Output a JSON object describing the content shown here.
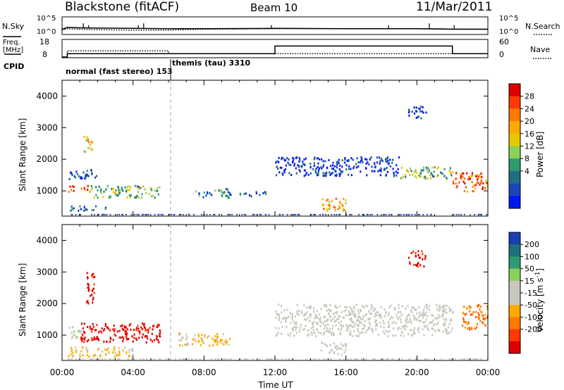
{
  "header": {
    "title": "Blackstone (fitACF)",
    "beam": "Beam 10",
    "date": "11/Mar/2011"
  },
  "top_panel": {
    "left_label": "N.Sky",
    "right_label": "N.Search",
    "left_ticks": [
      "10^5",
      "10^0"
    ],
    "right_ticks": [
      "10^5",
      "10^0"
    ]
  },
  "freq_panel": {
    "left_label_1": "Freq.",
    "left_label_2": "[MHz]",
    "right_label": "Nave",
    "left_ticks": [
      "18",
      "8"
    ],
    "right_ticks": [
      "60",
      "0"
    ]
  },
  "cpid": {
    "label": "CPID",
    "mode1": "normal (fast stereo) 153",
    "mode2": "themis (tau) 3310"
  },
  "time_axis": {
    "ticks": [
      "00:00",
      "04:00",
      "08:00",
      "12:00",
      "16:00",
      "20:00",
      "00:00"
    ],
    "label": "Time UT"
  },
  "chart_data": [
    {
      "type": "line",
      "name": "N.Sky / N.Search counts",
      "x_unit": "hours UT",
      "y_scale": "log",
      "ylim": [
        1,
        100000
      ],
      "series": [
        {
          "name": "N.Sky",
          "style": "solid",
          "x": [
            0,
            0.3,
            1,
            2,
            4,
            6,
            8,
            12,
            16,
            20,
            22,
            24
          ],
          "y": [
            20,
            80,
            60,
            50,
            40,
            30,
            30,
            40,
            30,
            30,
            20,
            20
          ]
        },
        {
          "name": "N.Search",
          "style": "dotted",
          "x": [
            0,
            0.3,
            1,
            2,
            4,
            6,
            8,
            12,
            16,
            20,
            24
          ],
          "y": [
            10,
            30,
            20,
            15,
            10,
            10,
            20,
            30,
            30,
            30,
            20
          ]
        }
      ]
    },
    {
      "type": "line",
      "name": "Frequency / Nave",
      "x_unit": "hours UT",
      "series": [
        {
          "name": "Freq. [MHz]",
          "style": "solid",
          "x": [
            0,
            0.3,
            0.3,
            12,
            12,
            22,
            22,
            24
          ],
          "y": [
            8,
            8,
            10,
            10,
            14.5,
            14.5,
            10,
            10
          ],
          "ylim": [
            8,
            18
          ]
        },
        {
          "name": "Nave",
          "style": "dotted",
          "x": [
            0,
            0.3,
            0.3,
            6,
            6,
            24
          ],
          "y": [
            0,
            0,
            22,
            22,
            12,
            12
          ],
          "ylim": [
            0,
            60
          ]
        }
      ]
    },
    {
      "type": "heatmap",
      "name": "Power",
      "ylabel": "Slant Range [km]",
      "ylim": [
        200,
        4500
      ],
      "y_ticks": [
        1000,
        2000,
        3000,
        4000
      ],
      "colorbar": {
        "label": "Power [dB]",
        "ticks": [
          28,
          24,
          20,
          16,
          12,
          8,
          4
        ],
        "colors": [
          "#dd0000",
          "#ff3a00",
          "#ff7a00",
          "#ffaa00",
          "#e8c800",
          "#8ad15a",
          "#2f9a70",
          "#1f6f80",
          "#1a47b8",
          "#0018ee"
        ]
      },
      "regions": [
        {
          "t0": 0.3,
          "t1": 1.5,
          "r0": 1000,
          "r1": 1200,
          "level": 26
        },
        {
          "t0": 0.3,
          "t1": 2.0,
          "r0": 1400,
          "r1": 1700,
          "level": 8
        },
        {
          "t0": 1.2,
          "t1": 1.7,
          "r0": 2200,
          "r1": 2800,
          "level": 18
        },
        {
          "t0": 1.5,
          "t1": 5.5,
          "r0": 800,
          "r1": 1200,
          "level": 14
        },
        {
          "t0": 0.3,
          "t1": 2.5,
          "r0": 400,
          "r1": 550,
          "level": 10
        },
        {
          "t0": 7.5,
          "t1": 9.5,
          "r0": 800,
          "r1": 1100,
          "level": 10
        },
        {
          "t0": 10,
          "t1": 11.5,
          "r0": 850,
          "r1": 1000,
          "level": 8
        },
        {
          "t0": 12,
          "t1": 19,
          "r0": 1500,
          "r1": 2100,
          "level": 6
        },
        {
          "t0": 14.5,
          "t1": 16,
          "r0": 400,
          "r1": 800,
          "level": 20
        },
        {
          "t0": 19.5,
          "t1": 20.5,
          "r0": 3300,
          "r1": 3700,
          "level": 6
        },
        {
          "t0": 19,
          "t1": 22,
          "r0": 1400,
          "r1": 1800,
          "level": 14
        },
        {
          "t0": 22,
          "t1": 24,
          "r0": 1000,
          "r1": 1600,
          "level": 24
        }
      ]
    },
    {
      "type": "heatmap",
      "name": "Velocity",
      "ylabel": "Slant Range [km]",
      "ylim": [
        200,
        4500
      ],
      "y_ticks": [
        1000,
        2000,
        3000,
        4000
      ],
      "colorbar": {
        "label": "Velocity [m s^-1]",
        "ticks": [
          200,
          100,
          50,
          15,
          -15,
          -50,
          -100,
          -200
        ],
        "colors": [
          "#1a3fb0",
          "#1f6f80",
          "#2f9a70",
          "#8ad15a",
          "#c8c8c0",
          "#c8c8c0",
          "#ffaa00",
          "#ff7a00",
          "#ff3a00",
          "#dd0000"
        ]
      },
      "regions": [
        {
          "t0": 0.3,
          "t1": 1.2,
          "r0": 900,
          "r1": 1300,
          "level": 30
        },
        {
          "t0": 1.0,
          "t1": 5.5,
          "r0": 800,
          "r1": 1400,
          "level": -180
        },
        {
          "t0": 1.3,
          "t1": 1.8,
          "r0": 2000,
          "r1": 3000,
          "level": -180
        },
        {
          "t0": 0.3,
          "t1": 4,
          "r0": 350,
          "r1": 650,
          "level": -50
        },
        {
          "t0": 6.5,
          "t1": 9.5,
          "r0": 700,
          "r1": 1100,
          "level": -50
        },
        {
          "t0": 12,
          "t1": 22,
          "r0": 1000,
          "r1": 2000,
          "level": 0
        },
        {
          "t0": 14.5,
          "t1": 16,
          "r0": 400,
          "r1": 800,
          "level": 0
        },
        {
          "t0": 19.5,
          "t1": 20.5,
          "r0": 3200,
          "r1": 3700,
          "level": -180
        },
        {
          "t0": 22.5,
          "t1": 24,
          "r0": 1200,
          "r1": 2000,
          "level": -100
        }
      ]
    }
  ]
}
